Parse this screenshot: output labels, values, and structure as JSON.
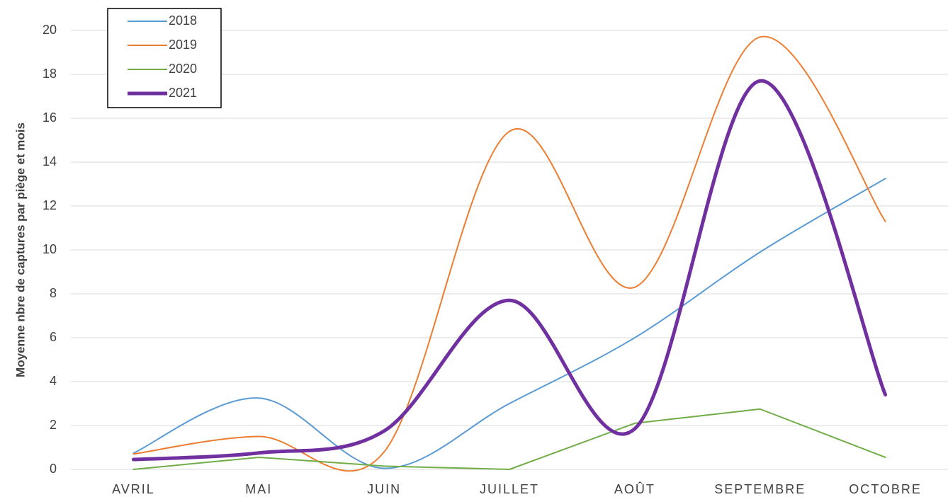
{
  "chart_data": {
    "type": "line",
    "y_label": "Moyenne nbre de captures par piège et mois",
    "categories": [
      "AVRIL",
      "MAI",
      "JUIN",
      "JUILLET",
      "AOÛT",
      "SEPTEMBRE",
      "OCTOBRE"
    ],
    "series": [
      {
        "name": "2018",
        "color": "#5b9bd5",
        "width": 2,
        "smooth": true,
        "values": [
          0.74,
          3.25,
          0.05,
          3.0,
          6.0,
          9.9,
          13.25
        ]
      },
      {
        "name": "2019",
        "color": "#ed7d31",
        "width": 2,
        "smooth": true,
        "values": [
          0.7,
          1.5,
          0.8,
          15.4,
          8.3,
          19.7,
          11.3
        ]
      },
      {
        "name": "2020",
        "color": "#70ad47",
        "width": 2,
        "smooth": false,
        "values": [
          0,
          0.55,
          0.15,
          0,
          2.1,
          2.75,
          0.55
        ]
      },
      {
        "name": "2021",
        "color": "#7030a0",
        "width": 5,
        "smooth": true,
        "values": [
          0.45,
          0.75,
          1.75,
          7.7,
          1.85,
          17.7,
          3.4
        ]
      }
    ],
    "ylim": [
      0,
      20
    ],
    "yticks": [
      0,
      2,
      4,
      6,
      8,
      10,
      12,
      14,
      16,
      18,
      20
    ],
    "grid": true,
    "legend": "top-left"
  }
}
